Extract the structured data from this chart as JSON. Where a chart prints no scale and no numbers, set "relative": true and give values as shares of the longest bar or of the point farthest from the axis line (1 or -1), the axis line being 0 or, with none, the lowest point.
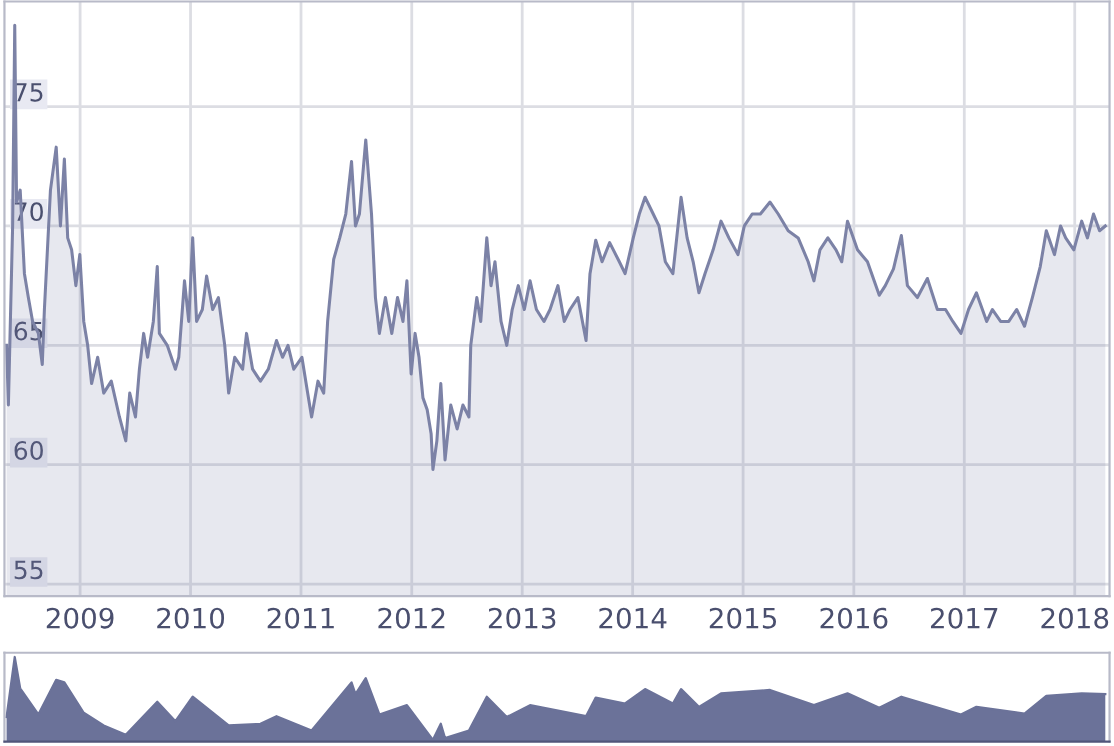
{
  "chart_data": [
    {
      "type": "area",
      "xlim": [
        "2008-08-08",
        "2018-08-08"
      ],
      "ylim": [
        54.5,
        79.4
      ],
      "yticks": [
        55,
        60,
        65,
        70,
        75
      ],
      "grid": true,
      "xticks": [
        {
          "value": "2009-04-15",
          "label": "2009"
        },
        {
          "value": "2010-04-15",
          "label": "2010"
        },
        {
          "value": "2011-04-15",
          "label": "2011"
        },
        {
          "value": "2012-04-15",
          "label": "2012"
        },
        {
          "value": "2013-04-15",
          "label": "2013"
        },
        {
          "value": "2014-04-15",
          "label": "2014"
        },
        {
          "value": "2015-04-15",
          "label": "2015"
        },
        {
          "value": "2016-04-15",
          "label": "2016"
        },
        {
          "value": "2017-04-15",
          "label": "2017"
        },
        {
          "value": "2018-04-15",
          "label": "2018"
        }
      ],
      "x": [
        "2008-08-15",
        "2008-08-21",
        "2008-09-04",
        "2008-09-11",
        "2008-09-17",
        "2008-09-29",
        "2008-10-13",
        "2008-10-26",
        "2008-11-09",
        "2008-11-28",
        "2008-12-11",
        "2008-12-18",
        "2009-01-07",
        "2009-01-26",
        "2009-02-09",
        "2009-02-22",
        "2009-03-05",
        "2009-03-18",
        "2009-04-01",
        "2009-04-14",
        "2009-04-27",
        "2009-05-10",
        "2009-05-23",
        "2009-06-12",
        "2009-07-02",
        "2009-07-27",
        "2009-08-23",
        "2009-09-13",
        "2009-09-26",
        "2009-10-15",
        "2009-10-28",
        "2009-11-11",
        "2009-11-24",
        "2009-12-13",
        "2009-12-26",
        "2010-01-02",
        "2010-01-28",
        "2010-02-24",
        "2010-03-07",
        "2010-03-26",
        "2010-04-09",
        "2010-04-22",
        "2010-05-05",
        "2010-05-24",
        "2010-06-07",
        "2010-06-27",
        "2010-07-16",
        "2010-08-06",
        "2010-08-19",
        "2010-09-08",
        "2010-10-04",
        "2010-10-17",
        "2010-11-06",
        "2010-12-02",
        "2010-12-28",
        "2011-01-24",
        "2011-02-13",
        "2011-03-03",
        "2011-03-22",
        "2011-04-18",
        "2011-05-07",
        "2011-05-20",
        "2011-06-10",
        "2011-06-29",
        "2011-07-12",
        "2011-08-01",
        "2011-08-21",
        "2011-09-10",
        "2011-09-29",
        "2011-10-12",
        "2011-10-25",
        "2011-11-15",
        "2011-12-04",
        "2011-12-17",
        "2011-12-30",
        "2012-01-19",
        "2012-02-09",
        "2012-02-28",
        "2012-03-17",
        "2012-03-30",
        "2012-04-13",
        "2012-04-26",
        "2012-05-09",
        "2012-05-22",
        "2012-06-05",
        "2012-06-18",
        "2012-06-24",
        "2012-07-07",
        "2012-07-20",
        "2012-08-03",
        "2012-08-22",
        "2012-09-12",
        "2012-10-01",
        "2012-10-21",
        "2012-10-27",
        "2012-11-16",
        "2012-11-29",
        "2012-12-19",
        "2013-01-02",
        "2013-01-15",
        "2013-02-04",
        "2013-02-23",
        "2013-03-13",
        "2013-04-02",
        "2013-04-22",
        "2013-05-11",
        "2013-06-01",
        "2013-06-26",
        "2013-07-16",
        "2013-08-11",
        "2013-09-01",
        "2013-09-20",
        "2013-10-16",
        "2013-11-12",
        "2013-11-25",
        "2013-12-14",
        "2014-01-04",
        "2014-01-29",
        "2014-03-02",
        "2014-03-21",
        "2014-04-17",
        "2014-05-07",
        "2014-05-26",
        "2014-06-22",
        "2014-07-11",
        "2014-08-01",
        "2014-08-26",
        "2014-09-22",
        "2014-10-12",
        "2014-11-01",
        "2014-11-20",
        "2014-12-10",
        "2015-01-06",
        "2015-02-01",
        "2015-02-27",
        "2015-03-29",
        "2015-04-19",
        "2015-05-15",
        "2015-06-11",
        "2015-07-13",
        "2015-08-09",
        "2015-09-11",
        "2015-10-14",
        "2015-11-16",
        "2015-12-05",
        "2015-12-25",
        "2016-01-20",
        "2016-02-16",
        "2016-03-06",
        "2016-03-25",
        "2016-04-27",
        "2016-05-30",
        "2016-07-08",
        "2016-07-28",
        "2016-08-24",
        "2016-09-19",
        "2016-10-09",
        "2016-11-11",
        "2016-12-14",
        "2017-01-16",
        "2017-02-12",
        "2017-03-08",
        "2017-04-04",
        "2017-04-29",
        "2017-05-25",
        "2017-06-28",
        "2017-07-17",
        "2017-08-13",
        "2017-09-09",
        "2017-10-05",
        "2017-10-31",
        "2017-11-26",
        "2017-12-22",
        "2018-01-11",
        "2018-02-07",
        "2018-02-27",
        "2018-03-16",
        "2018-04-12",
        "2018-05-08",
        "2018-05-27",
        "2018-06-16",
        "2018-07-06",
        "2018-07-25"
      ],
      "series": [
        {
          "color": "#7c82a6",
          "values": [
            65.0,
            62.5,
            70,
            78.4,
            71,
            71.5,
            68,
            67,
            66,
            65.5,
            64.2,
            66.5,
            71.5,
            73.3,
            70,
            72.8,
            69.5,
            69,
            67.5,
            68.8,
            66,
            65,
            63.4,
            64.5,
            63,
            63.5,
            62,
            61,
            63,
            62,
            64,
            65.5,
            64.5,
            66,
            68.3,
            65.5,
            65,
            64,
            64.5,
            67.7,
            66,
            69.5,
            66,
            66.5,
            67.9,
            66.5,
            67,
            65,
            63,
            64.5,
            64,
            65.5,
            64,
            63.5,
            64,
            65.2,
            64.5,
            65,
            64,
            64.5,
            63,
            62,
            63.5,
            63,
            66,
            68.6,
            69.5,
            70.5,
            72.7,
            70,
            70.5,
            73.6,
            70.5,
            67,
            65.5,
            67,
            65.5,
            67,
            66,
            67.7,
            63.8,
            65.5,
            64.5,
            62.8,
            62.3,
            61.3,
            59.8,
            61,
            63.4,
            60.2,
            62.5,
            61.5,
            62.5,
            62,
            65,
            67,
            66,
            69.5,
            67.5,
            68.5,
            66,
            65,
            66.5,
            67.5,
            66.5,
            67.7,
            66.5,
            66,
            66.5,
            67.5,
            66,
            66.5,
            67,
            65.2,
            68,
            69.4,
            68.5,
            69.3,
            68.5,
            68,
            69.5,
            70.5,
            71.2,
            70.5,
            70,
            68.5,
            68,
            71.2,
            69.5,
            68.5,
            67.2,
            68,
            69,
            70.2,
            69.5,
            68.8,
            70,
            70.5,
            70.5,
            71,
            70.5,
            69.8,
            69.5,
            68.5,
            67.7,
            69,
            69.5,
            69,
            68.5,
            70.2,
            69,
            68.5,
            67.1,
            67.5,
            68.2,
            69.6,
            67.5,
            67,
            67.8,
            66.5,
            66.5,
            66,
            65.5,
            66.5,
            67.2,
            66,
            66.5,
            66,
            66,
            66.5,
            65.8,
            67,
            68.3,
            69.8,
            68.8,
            70,
            69.5,
            69,
            70.2,
            69.5,
            70.5,
            69.8,
            70
          ]
        }
      ]
    },
    {
      "type": "area",
      "relative": true,
      "xlim": [
        "2008-08-08",
        "2018-08-08"
      ],
      "x": [
        "2008-08-15",
        "2008-09-11",
        "2008-09-29",
        "2008-11-28",
        "2009-01-26",
        "2009-02-22",
        "2009-04-27",
        "2009-07-02",
        "2009-09-13",
        "2009-12-26",
        "2010-02-24",
        "2010-04-22",
        "2010-08-19",
        "2010-12-02",
        "2011-01-24",
        "2011-05-20",
        "2011-09-29",
        "2011-10-12",
        "2011-11-15",
        "2011-12-30",
        "2012-03-30",
        "2012-06-24",
        "2012-07-20",
        "2012-08-03",
        "2012-10-21",
        "2012-12-19",
        "2013-02-23",
        "2013-05-11",
        "2013-11-12",
        "2013-12-14",
        "2014-03-21",
        "2014-05-26",
        "2014-08-26",
        "2014-09-22",
        "2014-11-20",
        "2015-02-01",
        "2015-07-13",
        "2015-12-05",
        "2016-03-25",
        "2016-07-08",
        "2016-09-19",
        "2017-04-04",
        "2017-05-25",
        "2017-10-31",
        "2018-01-11",
        "2018-05-08",
        "2018-07-25"
      ],
      "series": [
        {
          "color": "#6b7299",
          "values": [
            0.29,
            1.0,
            0.63,
            0.32,
            0.73,
            0.7,
            0.34,
            0.19,
            0.08,
            0.47,
            0.24,
            0.53,
            0.19,
            0.21,
            0.3,
            0.13,
            0.7,
            0.56,
            0.75,
            0.32,
            0.43,
            0.02,
            0.21,
            0.04,
            0.13,
            0.53,
            0.29,
            0.43,
            0.3,
            0.52,
            0.45,
            0.62,
            0.45,
            0.62,
            0.41,
            0.57,
            0.61,
            0.43,
            0.57,
            0.4,
            0.53,
            0.32,
            0.41,
            0.33,
            0.54,
            0.57,
            0.56
          ]
        }
      ]
    }
  ]
}
